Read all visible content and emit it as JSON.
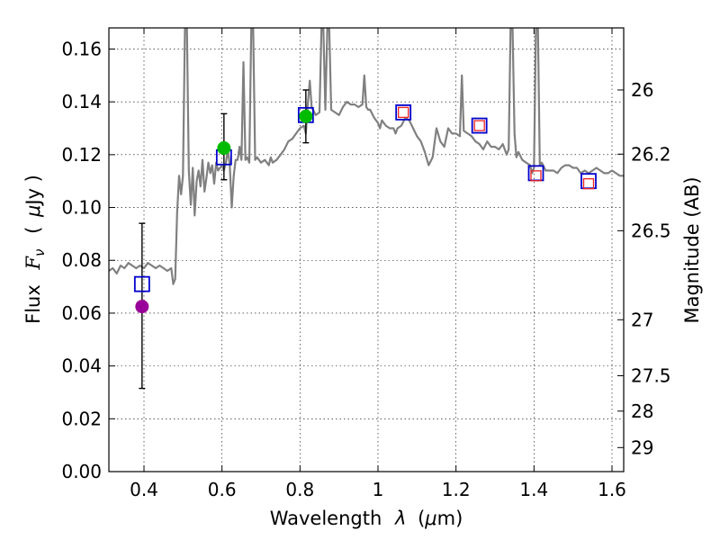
{
  "chart_data": {
    "type": "scatter",
    "xlabel_parts": [
      "Wavelength",
      "λ",
      "(",
      "μ",
      "m)"
    ],
    "ylabel_parts": [
      "Flux",
      "F",
      "ν",
      "(",
      "μ",
      "Jy )"
    ],
    "y2label": "Magnitude (AB)",
    "xlim": [
      0.31,
      1.63
    ],
    "ylim": [
      0.0,
      0.168
    ],
    "grid": true,
    "x_ticks": [
      0.4,
      0.6,
      0.8,
      1.0,
      1.2,
      1.4,
      1.6
    ],
    "x_tick_labels": [
      "0.4",
      "0.6",
      "0.8",
      "1",
      "1.2",
      "1.4",
      "1.6"
    ],
    "y_ticks": [
      0.0,
      0.02,
      0.04,
      0.06,
      0.08,
      0.1,
      0.12,
      0.14,
      0.16
    ],
    "y_tick_labels": [
      "0.00",
      "0.02",
      "0.04",
      "0.06",
      "0.08",
      "0.10",
      "0.12",
      "0.14",
      "0.16"
    ],
    "y2_ticks": [
      {
        "label": "26",
        "flux": 0.1445
      },
      {
        "label": "26.2",
        "flux": 0.1202
      },
      {
        "label": "26.5",
        "flux": 0.0912
      },
      {
        "label": "27",
        "flux": 0.0575
      },
      {
        "label": "27.5",
        "flux": 0.0363
      },
      {
        "label": "28",
        "flux": 0.0229
      },
      {
        "label": "29",
        "flux": 0.0091
      }
    ],
    "model_spectrum": {
      "color": "#808080",
      "points": [
        [
          0.31,
          0.076
        ],
        [
          0.32,
          0.077
        ],
        [
          0.33,
          0.075
        ],
        [
          0.34,
          0.078
        ],
        [
          0.35,
          0.077
        ],
        [
          0.36,
          0.079
        ],
        [
          0.37,
          0.078
        ],
        [
          0.38,
          0.077
        ],
        [
          0.39,
          0.078
        ],
        [
          0.4,
          0.077
        ],
        [
          0.41,
          0.079
        ],
        [
          0.42,
          0.078
        ],
        [
          0.43,
          0.077
        ],
        [
          0.44,
          0.078
        ],
        [
          0.45,
          0.077
        ],
        [
          0.46,
          0.076
        ],
        [
          0.47,
          0.077
        ],
        [
          0.475,
          0.071
        ],
        [
          0.48,
          0.073
        ],
        [
          0.485,
          0.098
        ],
        [
          0.49,
          0.112
        ],
        [
          0.495,
          0.105
        ],
        [
          0.5,
          0.112
        ],
        [
          0.505,
          0.168
        ],
        [
          0.51,
          0.168
        ],
        [
          0.515,
          0.114
        ],
        [
          0.52,
          0.101
        ],
        [
          0.525,
          0.115
        ],
        [
          0.53,
          0.097
        ],
        [
          0.535,
          0.11
        ],
        [
          0.54,
          0.114
        ],
        [
          0.545,
          0.108
        ],
        [
          0.55,
          0.118
        ],
        [
          0.555,
          0.106
        ],
        [
          0.56,
          0.111
        ],
        [
          0.565,
          0.117
        ],
        [
          0.57,
          0.113
        ],
        [
          0.575,
          0.116
        ],
        [
          0.58,
          0.109
        ],
        [
          0.585,
          0.117
        ],
        [
          0.59,
          0.114
        ],
        [
          0.6,
          0.116
        ],
        [
          0.605,
          0.114
        ],
        [
          0.61,
          0.117
        ],
        [
          0.615,
          0.122
        ],
        [
          0.62,
          0.116
        ],
        [
          0.625,
          0.1
        ],
        [
          0.63,
          0.112
        ],
        [
          0.635,
          0.118
        ],
        [
          0.64,
          0.118
        ],
        [
          0.645,
          0.123
        ],
        [
          0.65,
          0.118
        ],
        [
          0.655,
          0.155
        ],
        [
          0.66,
          0.118
        ],
        [
          0.665,
          0.119
        ],
        [
          0.67,
          0.117
        ],
        [
          0.675,
          0.168
        ],
        [
          0.68,
          0.168
        ],
        [
          0.685,
          0.118
        ],
        [
          0.69,
          0.119
        ],
        [
          0.7,
          0.117
        ],
        [
          0.71,
          0.118
        ],
        [
          0.72,
          0.116
        ],
        [
          0.725,
          0.119
        ],
        [
          0.73,
          0.117
        ],
        [
          0.74,
          0.118
        ],
        [
          0.75,
          0.12
        ],
        [
          0.76,
          0.122
        ],
        [
          0.77,
          0.125
        ],
        [
          0.78,
          0.126
        ],
        [
          0.79,
          0.128
        ],
        [
          0.8,
          0.13
        ],
        [
          0.81,
          0.131
        ],
        [
          0.815,
          0.128
        ],
        [
          0.82,
          0.139
        ],
        [
          0.825,
          0.148
        ],
        [
          0.83,
          0.138
        ],
        [
          0.84,
          0.135
        ],
        [
          0.85,
          0.136
        ],
        [
          0.855,
          0.168
        ],
        [
          0.86,
          0.168
        ],
        [
          0.865,
          0.137
        ],
        [
          0.87,
          0.168
        ],
        [
          0.875,
          0.168
        ],
        [
          0.88,
          0.137
        ],
        [
          0.89,
          0.136
        ],
        [
          0.9,
          0.135
        ],
        [
          0.91,
          0.138
        ],
        [
          0.92,
          0.14
        ],
        [
          0.93,
          0.139
        ],
        [
          0.94,
          0.139
        ],
        [
          0.95,
          0.138
        ],
        [
          0.96,
          0.139
        ],
        [
          0.965,
          0.15
        ],
        [
          0.97,
          0.138
        ],
        [
          0.975,
          0.137
        ],
        [
          0.98,
          0.137
        ],
        [
          0.99,
          0.134
        ],
        [
          1.0,
          0.132
        ],
        [
          1.005,
          0.13
        ],
        [
          1.01,
          0.133
        ],
        [
          1.02,
          0.131
        ],
        [
          1.03,
          0.13
        ],
        [
          1.04,
          0.13
        ],
        [
          1.045,
          0.128
        ],
        [
          1.05,
          0.13
        ],
        [
          1.06,
          0.131
        ],
        [
          1.07,
          0.134
        ],
        [
          1.08,
          0.133
        ],
        [
          1.09,
          0.13
        ],
        [
          1.1,
          0.127
        ],
        [
          1.11,
          0.125
        ],
        [
          1.12,
          0.121
        ],
        [
          1.13,
          0.116
        ],
        [
          1.14,
          0.119
        ],
        [
          1.15,
          0.13
        ],
        [
          1.16,
          0.125
        ],
        [
          1.17,
          0.123
        ],
        [
          1.18,
          0.13
        ],
        [
          1.19,
          0.128
        ],
        [
          1.2,
          0.128
        ],
        [
          1.21,
          0.127
        ],
        [
          1.215,
          0.15
        ],
        [
          1.22,
          0.129
        ],
        [
          1.23,
          0.128
        ],
        [
          1.24,
          0.127
        ],
        [
          1.25,
          0.125
        ],
        [
          1.26,
          0.124
        ],
        [
          1.27,
          0.122
        ],
        [
          1.28,
          0.125
        ],
        [
          1.29,
          0.123
        ],
        [
          1.3,
          0.123
        ],
        [
          1.31,
          0.122
        ],
        [
          1.32,
          0.124
        ],
        [
          1.33,
          0.12
        ],
        [
          1.335,
          0.122
        ],
        [
          1.34,
          0.168
        ],
        [
          1.345,
          0.168
        ],
        [
          1.35,
          0.128
        ],
        [
          1.355,
          0.119
        ],
        [
          1.36,
          0.121
        ],
        [
          1.37,
          0.118
        ],
        [
          1.38,
          0.117
        ],
        [
          1.39,
          0.116
        ],
        [
          1.395,
          0.113
        ],
        [
          1.4,
          0.115
        ],
        [
          1.405,
          0.168
        ],
        [
          1.41,
          0.168
        ],
        [
          1.415,
          0.116
        ],
        [
          1.42,
          0.117
        ],
        [
          1.43,
          0.114
        ],
        [
          1.44,
          0.114
        ],
        [
          1.45,
          0.114
        ],
        [
          1.46,
          0.113
        ],
        [
          1.47,
          0.115
        ],
        [
          1.48,
          0.116
        ],
        [
          1.49,
          0.116
        ],
        [
          1.5,
          0.115
        ],
        [
          1.51,
          0.115
        ],
        [
          1.52,
          0.113
        ],
        [
          1.53,
          0.114
        ],
        [
          1.54,
          0.113
        ],
        [
          1.55,
          0.114
        ],
        [
          1.56,
          0.115
        ],
        [
          1.57,
          0.114
        ],
        [
          1.58,
          0.113
        ],
        [
          1.59,
          0.113
        ],
        [
          1.6,
          0.114
        ],
        [
          1.61,
          0.113
        ],
        [
          1.62,
          0.112
        ],
        [
          1.63,
          0.112
        ]
      ]
    },
    "model_photometry": {
      "marker": "square",
      "color": "#0000cc",
      "points": [
        [
          0.395,
          0.071
        ],
        [
          0.605,
          0.119
        ],
        [
          0.815,
          0.135
        ],
        [
          1.065,
          0.136
        ],
        [
          1.26,
          0.131
        ],
        [
          1.405,
          0.113
        ],
        [
          1.54,
          0.11
        ]
      ]
    },
    "observed_red_squares": {
      "marker": "square",
      "color": "#ee2222",
      "points": [
        [
          1.065,
          0.136
        ],
        [
          1.26,
          0.131
        ],
        [
          1.405,
          0.112
        ],
        [
          1.54,
          0.109
        ]
      ]
    },
    "observed_dots": [
      {
        "x": 0.395,
        "y": 0.0625,
        "err_low": 0.0315,
        "err_high": 0.094,
        "color": "#990099"
      },
      {
        "x": 0.605,
        "y": 0.1225,
        "err_low": 0.1105,
        "err_high": 0.1355,
        "color": "#00bb00"
      },
      {
        "x": 0.815,
        "y": 0.1345,
        "err_low": 0.1245,
        "err_high": 0.1445,
        "color": "#00bb00"
      }
    ]
  }
}
